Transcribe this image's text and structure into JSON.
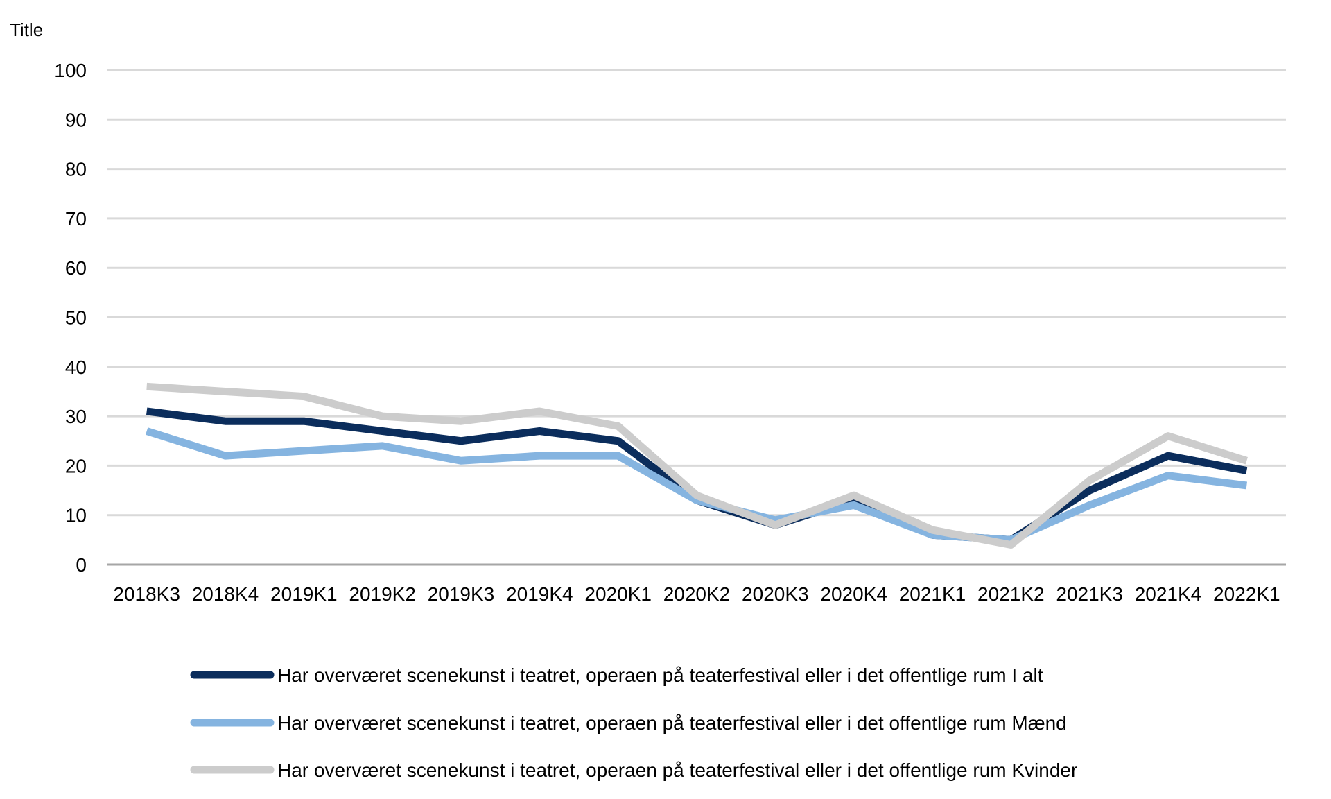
{
  "chart_data": {
    "type": "line",
    "title": "",
    "ylabel": "Title",
    "xlabel": "",
    "ylim": [
      0,
      100
    ],
    "yticks": [
      0,
      10,
      20,
      30,
      40,
      50,
      60,
      70,
      80,
      90,
      100
    ],
    "grid": true,
    "legend_position": "bottom",
    "categories": [
      "2018K3",
      "2018K4",
      "2019K1",
      "2019K2",
      "2019K3",
      "2019K4",
      "2020K1",
      "2020K2",
      "2020K3",
      "2020K4",
      "2021K1",
      "2021K2",
      "2021K3",
      "2021K4",
      "2022K1"
    ],
    "series": [
      {
        "name": "Har overværet scenekunst i teatret, operaen på teaterfestival eller i det offentlige rum I alt",
        "color": "#0b2d5c",
        "values": [
          31,
          29,
          29,
          27,
          25,
          27,
          25,
          13,
          8,
          13,
          6,
          5,
          15,
          22,
          19
        ]
      },
      {
        "name": "Har overværet scenekunst i teatret, operaen på teaterfestival eller i det offentlige rum Mænd",
        "color": "#85b4e0",
        "values": [
          27,
          22,
          23,
          24,
          21,
          22,
          22,
          13,
          9,
          12,
          6,
          5,
          12,
          18,
          16
        ]
      },
      {
        "name": "Har overværet scenekunst i teatret, operaen på teaterfestival eller i det offentlige rum Kvinder",
        "color": "#cccccc",
        "values": [
          36,
          35,
          34,
          30,
          29,
          31,
          28,
          14,
          8,
          14,
          7,
          4,
          17,
          26,
          21
        ]
      }
    ]
  }
}
